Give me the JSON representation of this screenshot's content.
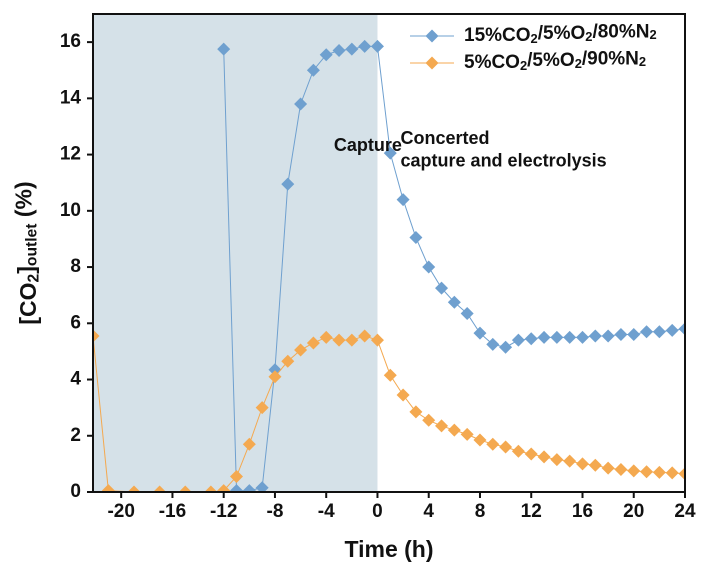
{
  "chart_data": {
    "type": "line",
    "x_label": "Time (h)",
    "y_label": "[CO2]outlet (%)",
    "xlim": [
      -22.2,
      24
    ],
    "ylim": [
      0,
      17
    ],
    "xticks": [
      -20,
      -16,
      -12,
      -8,
      -4,
      0,
      4,
      8,
      12,
      16,
      20,
      24
    ],
    "yticks": [
      0,
      2,
      4,
      6,
      8,
      10,
      12,
      14,
      16
    ],
    "shaded_region": [
      -22.2,
      0
    ],
    "shade_color": "#d5e1e8",
    "legend": "upper right",
    "annotations": [
      {
        "text": "Capture",
        "x": -3.4,
        "y": 12.3
      },
      {
        "text": "Concerted",
        "x": 1.8,
        "y": 12.55
      },
      {
        "text": "capture and electrolysis",
        "x": 1.8,
        "y": 11.75
      }
    ],
    "series": [
      {
        "name": "15%CO2/5%O2/80%N2",
        "color": "#6fa0cf",
        "x": [
          -12,
          -11,
          -10,
          -9,
          -8,
          -7,
          -6,
          -5,
          -4,
          -3,
          -2,
          -1,
          0,
          1,
          2,
          3,
          4,
          5,
          6,
          7,
          8,
          9,
          10,
          11,
          12,
          13,
          14,
          15,
          16,
          17,
          18,
          19,
          20,
          21,
          22,
          23,
          24
        ],
        "values": [
          15.75,
          0.05,
          0.05,
          0.15,
          4.35,
          10.95,
          13.8,
          15.0,
          15.55,
          15.7,
          15.75,
          15.85,
          15.85,
          12.05,
          10.4,
          9.05,
          8.0,
          7.25,
          6.75,
          6.35,
          5.65,
          5.25,
          5.15,
          5.4,
          5.45,
          5.5,
          5.5,
          5.5,
          5.5,
          5.55,
          5.55,
          5.6,
          5.6,
          5.7,
          5.7,
          5.75,
          5.8
        ]
      },
      {
        "name": "5%CO2/5%O2/90%N2",
        "color": "#f4a950",
        "x": [
          -22.2,
          -21,
          -19,
          -17,
          -15,
          -13,
          -12,
          -11,
          -10,
          -9,
          -8,
          -7,
          -6,
          -5,
          -4,
          -3,
          -2,
          -1,
          0,
          1,
          2,
          3,
          4,
          5,
          6,
          7,
          8,
          9,
          10,
          11,
          12,
          13,
          14,
          15,
          16,
          17,
          18,
          19,
          20,
          21,
          22,
          23,
          24
        ],
        "values": [
          5.55,
          0.05,
          0,
          0,
          0,
          0,
          0.05,
          0.55,
          1.7,
          3.0,
          4.1,
          4.65,
          5.05,
          5.3,
          5.5,
          5.4,
          5.4,
          5.55,
          5.4,
          4.15,
          3.45,
          2.85,
          2.55,
          2.35,
          2.2,
          2.05,
          1.85,
          1.7,
          1.6,
          1.45,
          1.35,
          1.25,
          1.15,
          1.1,
          1.0,
          0.95,
          0.85,
          0.8,
          0.75,
          0.72,
          0.7,
          0.68,
          0.65
        ]
      }
    ]
  }
}
